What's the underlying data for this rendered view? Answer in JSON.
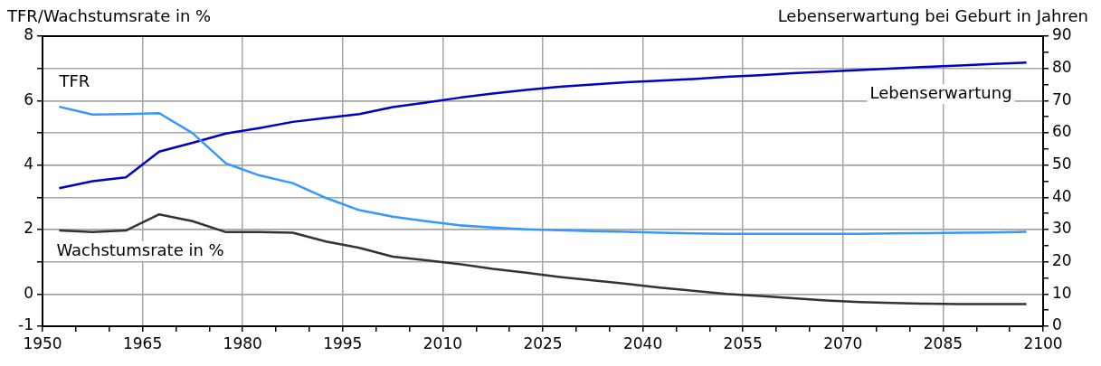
{
  "chart_data": {
    "type": "line",
    "ylabel": "TFR/Wachstumsrate in %",
    "y2label": "Lebenserwartung bei Geburt in Jahren",
    "x": [
      1952.5,
      1957.5,
      1962.5,
      1967.5,
      1972.5,
      1977.5,
      1982.5,
      1987.5,
      1992.5,
      1997.5,
      2002.5,
      2007.5,
      2012.5,
      2017.5,
      2022.5,
      2027.5,
      2032.5,
      2037.5,
      2042.5,
      2047.5,
      2052.5,
      2057.5,
      2062.5,
      2067.5,
      2072.5,
      2077.5,
      2082.5,
      2087.5,
      2092.5,
      2097.5
    ],
    "series": [
      {
        "name": "TFR",
        "color": "#3399ff",
        "values": [
          5.81,
          5.57,
          5.58,
          5.61,
          4.99,
          4.05,
          3.68,
          3.44,
          2.98,
          2.6,
          2.4,
          2.26,
          2.13,
          2.06,
          2.01,
          1.98,
          1.95,
          1.93,
          1.9,
          1.88,
          1.87,
          1.87,
          1.87,
          1.87,
          1.87,
          1.88,
          1.89,
          1.9,
          1.91,
          1.93
        ]
      },
      {
        "name": "Lebenserwartung",
        "color": "#0000c0",
        "axis": "y2",
        "values": [
          42.8,
          45.0,
          46.2,
          54.2,
          56.9,
          59.8,
          61.5,
          63.4,
          64.6,
          65.8,
          68.0,
          69.4,
          70.9,
          72.2,
          73.3,
          74.3,
          75.0,
          75.7,
          76.2,
          76.7,
          77.4,
          77.9,
          78.5,
          79.0,
          79.5,
          80.0,
          80.5,
          80.9,
          81.4,
          81.8
        ]
      },
      {
        "name": "Wachstumsrate in %",
        "color": "#333333",
        "values": [
          1.97,
          1.92,
          1.97,
          2.47,
          2.26,
          1.92,
          1.92,
          1.9,
          1.63,
          1.43,
          1.16,
          1.05,
          0.93,
          0.78,
          0.66,
          0.53,
          0.42,
          0.32,
          0.2,
          0.1,
          0.0,
          -0.06,
          -0.13,
          -0.2,
          -0.25,
          -0.28,
          -0.3,
          -0.31,
          -0.31,
          -0.31
        ]
      }
    ],
    "xlim": [
      1950,
      2100
    ],
    "xticks": [
      1950,
      {
        "value": 1955,
        "label": null
      },
      {
        "value": 1960,
        "label": null
      },
      1965,
      {
        "value": 1970,
        "label": null
      },
      {
        "value": 1975,
        "label": null
      },
      1980,
      {
        "value": 1985,
        "label": null
      },
      {
        "value": 1990,
        "label": null
      },
      1995,
      {
        "value": 2000,
        "label": null
      },
      {
        "value": 2005,
        "label": null
      },
      2010,
      {
        "value": 2015,
        "label": null
      },
      {
        "value": 2020,
        "label": null
      },
      2025,
      {
        "value": 2030,
        "label": null
      },
      {
        "value": 2035,
        "label": null
      },
      2040,
      {
        "value": 2045,
        "label": null
      },
      {
        "value": 2050,
        "label": null
      },
      2055,
      {
        "value": 2060,
        "label": null
      },
      {
        "value": 2065,
        "label": null
      },
      2070,
      {
        "value": 2075,
        "label": null
      },
      {
        "value": 2080,
        "label": null
      },
      2085,
      {
        "value": 2090,
        "label": null
      },
      {
        "value": 2095,
        "label": null
      },
      2100
    ],
    "ylim": [
      -1,
      8
    ],
    "yticks": [
      -1,
      0,
      {
        "value": 1,
        "label": null
      },
      2,
      {
        "value": 3,
        "label": null
      },
      4,
      {
        "value": 5,
        "label": null
      },
      6,
      {
        "value": 7,
        "label": null
      },
      8
    ],
    "y2lim": [
      0,
      90
    ],
    "y2ticks": [
      0,
      {
        "value": 5,
        "label": null
      },
      10,
      {
        "value": 15,
        "label": null
      },
      20,
      {
        "value": 25,
        "label": null
      },
      30,
      {
        "value": 35,
        "label": null
      },
      40,
      {
        "value": 45,
        "label": null
      },
      50,
      {
        "value": 55,
        "label": null
      },
      60,
      {
        "value": 65,
        "label": null
      },
      70,
      {
        "value": 75,
        "label": null
      },
      80,
      {
        "value": 85,
        "label": null
      },
      90
    ],
    "grid": true,
    "legend": false,
    "marker": "none",
    "line_style": "solid"
  }
}
